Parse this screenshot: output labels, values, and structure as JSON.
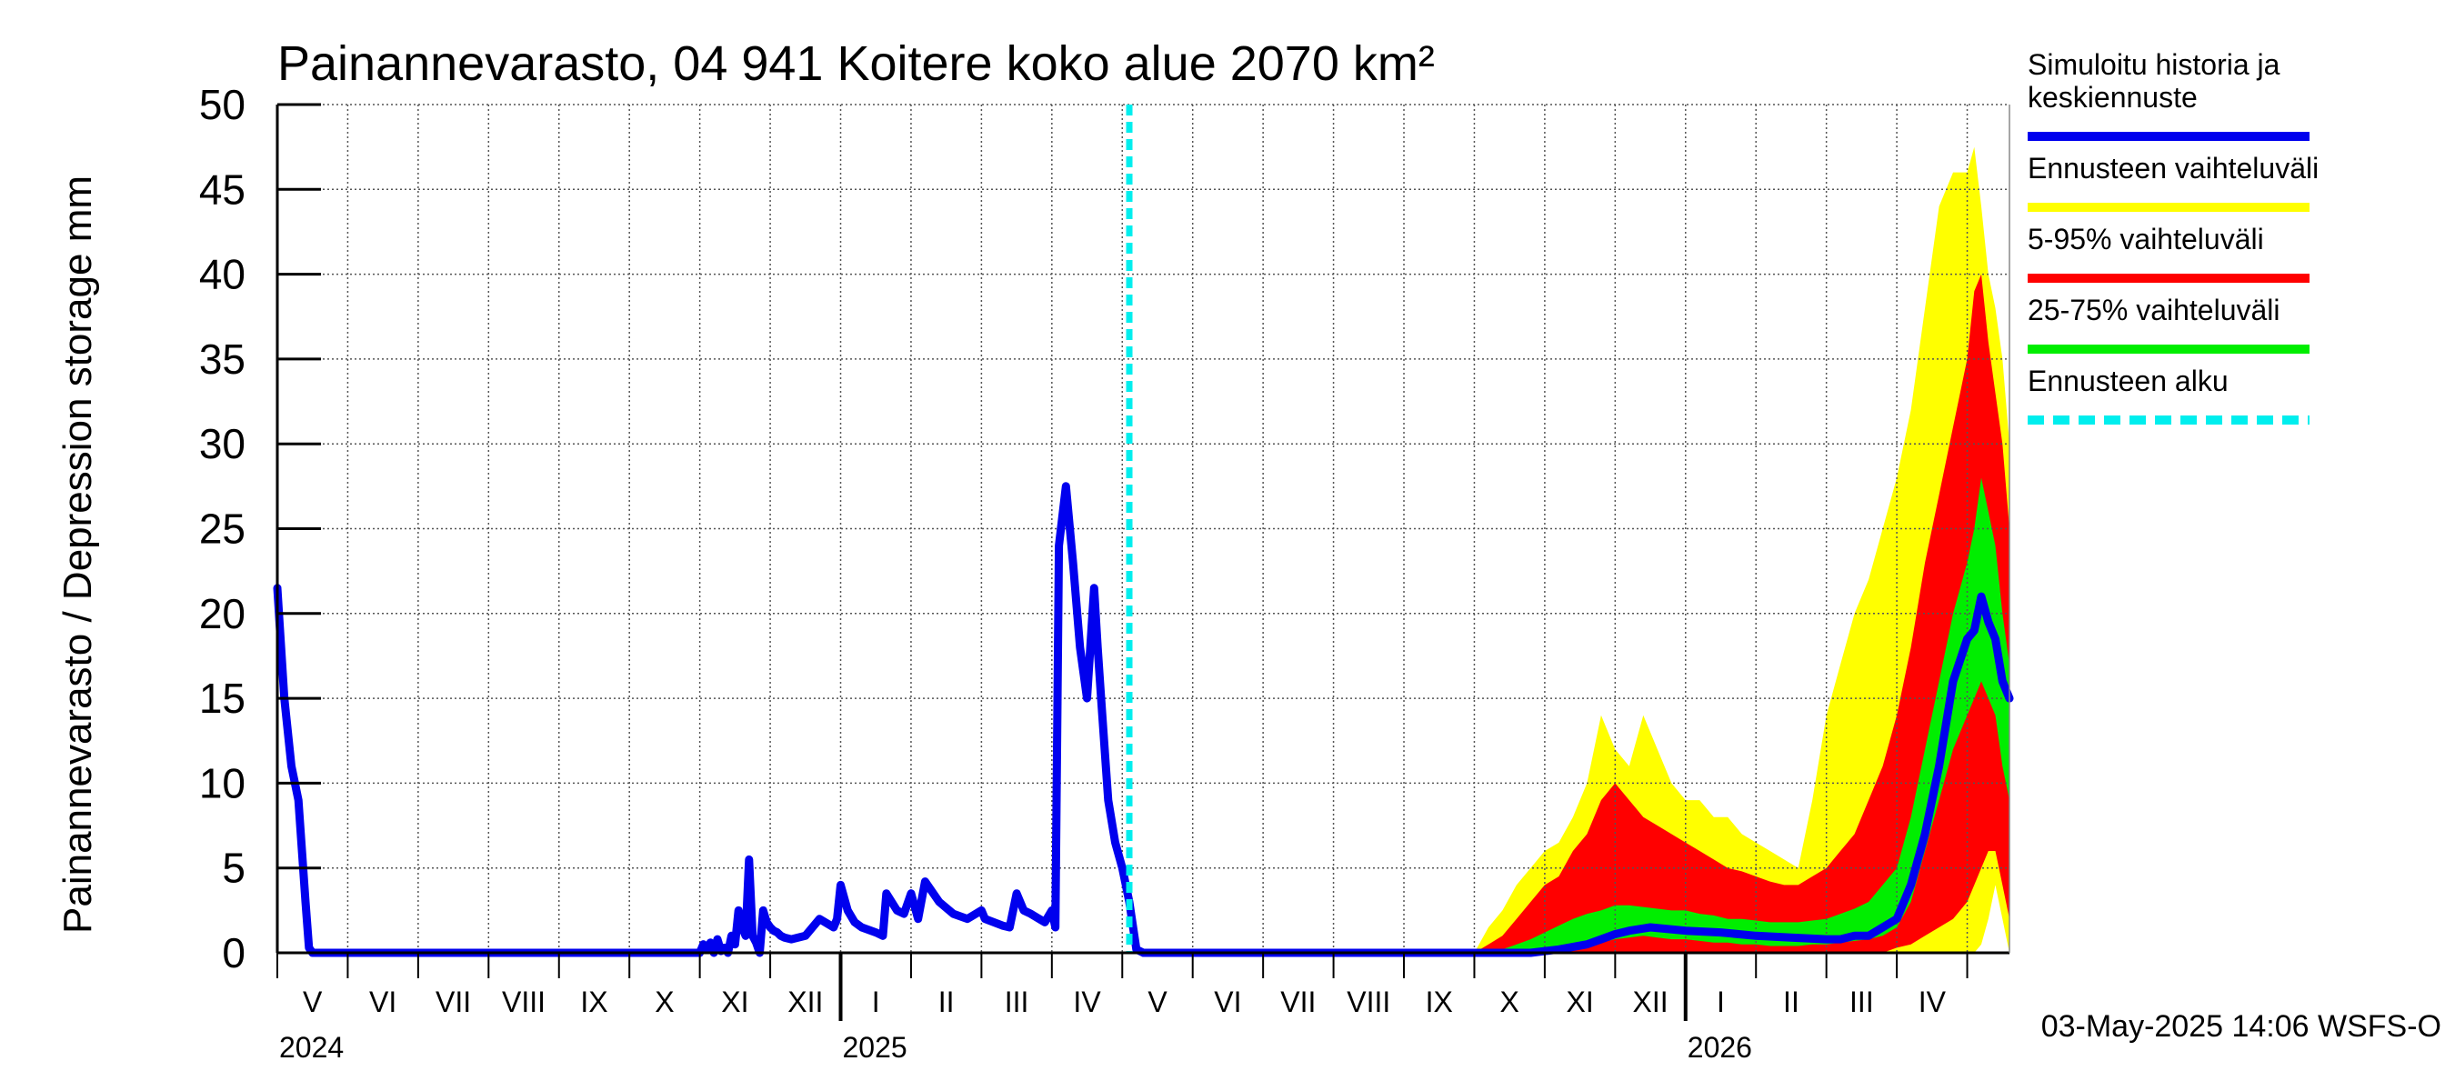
{
  "chart_data": {
    "type": "area",
    "title": "Painannevarasto, 04 941 Koitere koko alue 2070 km²",
    "ylabel": "Painannevarasto / Depression storage    mm",
    "ylim": [
      0,
      50
    ],
    "yticks": [
      0,
      5,
      10,
      15,
      20,
      25,
      30,
      35,
      40,
      45,
      50
    ],
    "x_range_months": [
      0,
      24.6
    ],
    "months": [
      "V",
      "VI",
      "VII",
      "VIII",
      "IX",
      "X",
      "XI",
      "XII",
      "I",
      "II",
      "III",
      "IV",
      "V",
      "VI",
      "VII",
      "VIII",
      "IX",
      "X",
      "XI",
      "XII",
      "I",
      "II",
      "III",
      "IV"
    ],
    "years": [
      {
        "label": "2024",
        "month": 0
      },
      {
        "label": "2025",
        "month": 8
      },
      {
        "label": "2026",
        "month": 20
      }
    ],
    "forecast_start_month": 12.1,
    "footer": "03-May-2025 14:06 WSFS-O",
    "legend": [
      {
        "label": "Simuloitu historia ja keskiennuste",
        "color": "#0000ee",
        "style": "solid"
      },
      {
        "label": "Ennusteen vaihteluväli",
        "color": "#ffff00",
        "style": "solid"
      },
      {
        "label": "5-95% vaihteluväli",
        "color": "#ff0000",
        "style": "solid"
      },
      {
        "label": "25-75% vaihteluväli",
        "color": "#00ee00",
        "style": "solid"
      },
      {
        "label": "Ennusteen alku",
        "color": "#00eeee",
        "style": "dashed"
      }
    ],
    "history": {
      "x": [
        0,
        0.1,
        0.2,
        0.3,
        0.4,
        0.45,
        0.5,
        6.0,
        6.05,
        6.1,
        6.15,
        6.2,
        6.25,
        6.3,
        6.35,
        6.4,
        6.45,
        6.5,
        6.55,
        6.6,
        6.65,
        6.7,
        6.75,
        6.8,
        6.85,
        6.9,
        6.95,
        7.0,
        7.05,
        7.1,
        7.15,
        7.2,
        7.3,
        7.5,
        7.7,
        7.9,
        7.95,
        8.0,
        8.1,
        8.2,
        8.3,
        8.5,
        8.6,
        8.65,
        8.8,
        8.9,
        9.0,
        9.1,
        9.2,
        9.4,
        9.6,
        9.8,
        10.0,
        10.05,
        10.3,
        10.4,
        10.5,
        10.6,
        10.7,
        10.9,
        11.0,
        11.05,
        11.1,
        11.2,
        11.3,
        11.4,
        11.5,
        11.6,
        11.65,
        11.7,
        11.8,
        11.9,
        12.0,
        12.1,
        12.2,
        12.3
      ],
      "y": [
        21.5,
        15,
        11,
        9,
        3,
        0.3,
        0,
        0,
        0.5,
        0.2,
        0.6,
        0,
        0.8,
        0.1,
        0.3,
        0,
        1,
        0.5,
        2.5,
        1.5,
        1,
        5.5,
        1,
        0.6,
        0,
        2.5,
        1.8,
        1.5,
        1.3,
        1.2,
        1,
        0.9,
        0.8,
        1,
        2,
        1.5,
        2,
        4,
        2.5,
        1.8,
        1.5,
        1.2,
        1,
        3.5,
        2.5,
        2.3,
        3.5,
        2,
        4.2,
        3,
        2.3,
        2,
        2.5,
        2,
        1.6,
        1.5,
        3.5,
        2.5,
        2.3,
        1.8,
        2.5,
        1.5,
        24,
        27.5,
        23,
        18,
        15,
        21.5,
        18,
        15,
        9,
        6.5,
        5,
        3,
        0.2,
        0
      ]
    },
    "forecast_median": {
      "x": [
        12.3,
        17.8,
        18.2,
        18.6,
        18.8,
        19.0,
        19.2,
        19.5,
        20.0,
        20.5,
        21.0,
        21.5,
        22.0,
        22.2,
        22.4,
        22.6,
        22.8,
        23.0,
        23.2,
        23.4,
        23.6,
        23.8,
        24.0,
        24.1,
        24.2,
        24.3,
        24.4,
        24.5,
        24.6
      ],
      "y": [
        0,
        0,
        0.2,
        0.5,
        0.8,
        1.1,
        1.3,
        1.5,
        1.3,
        1.2,
        1.0,
        0.9,
        0.8,
        0.8,
        1.0,
        1.0,
        1.5,
        2.0,
        4.0,
        7.0,
        11.0,
        16.0,
        18.5,
        19.0,
        21.0,
        19.5,
        18.5,
        16,
        15
      ]
    },
    "forecast_bands": {
      "x": [
        12.3,
        17.0,
        17.2,
        17.4,
        17.6,
        17.8,
        18.0,
        18.2,
        18.4,
        18.6,
        18.8,
        19.0,
        19.2,
        19.4,
        19.6,
        19.8,
        20.0,
        20.2,
        20.4,
        20.6,
        20.8,
        21.0,
        21.2,
        21.4,
        21.6,
        21.8,
        22.0,
        22.2,
        22.4,
        22.6,
        22.8,
        23.0,
        23.2,
        23.4,
        23.6,
        23.8,
        24.0,
        24.1,
        24.2,
        24.3,
        24.4,
        24.5,
        24.6
      ],
      "ens_min": [
        0,
        0,
        0,
        0,
        0,
        0,
        0,
        0,
        0,
        0,
        0,
        0,
        0,
        0,
        0,
        0,
        0,
        0,
        0,
        0,
        0,
        0,
        0,
        0,
        0,
        0,
        0,
        0,
        0,
        0,
        0,
        0,
        0,
        0,
        0,
        0,
        0,
        0,
        0.5,
        2,
        4,
        2,
        0
      ],
      "ens_max": [
        0,
        0,
        1.5,
        2.5,
        4,
        5,
        6,
        6.5,
        8,
        10,
        14,
        12,
        11,
        14,
        12,
        10,
        9,
        9,
        8,
        8,
        7,
        6.5,
        6,
        5.5,
        5,
        9,
        14,
        17,
        20,
        22,
        25,
        28,
        32,
        38,
        44,
        46,
        46,
        47.5,
        44,
        40,
        38,
        35,
        30
      ],
      "p05": [
        0,
        0,
        0,
        0,
        0,
        0,
        0,
        0,
        0,
        0,
        0,
        0,
        0,
        0,
        0,
        0,
        0,
        0,
        0,
        0,
        0,
        0,
        0,
        0,
        0,
        0,
        0,
        0,
        0,
        0,
        0,
        0.3,
        0.5,
        1,
        1.5,
        2,
        3,
        4,
        5,
        6,
        6,
        4,
        2
      ],
      "p95": [
        0,
        0,
        0.5,
        1,
        2,
        3,
        4,
        4.5,
        6,
        7,
        9,
        10,
        9,
        8,
        7.5,
        7,
        6.5,
        6,
        5.5,
        5,
        4.8,
        4.5,
        4.2,
        4,
        4,
        4.5,
        5,
        6,
        7,
        9,
        11,
        14,
        18,
        23,
        27,
        31,
        35,
        39,
        40,
        36,
        33,
        30,
        25
      ],
      "p25": [
        0,
        0,
        0,
        0,
        0,
        0,
        0,
        0.1,
        0.2,
        0.4,
        0.6,
        0.8,
        0.9,
        1.0,
        0.9,
        0.8,
        0.8,
        0.7,
        0.6,
        0.6,
        0.5,
        0.5,
        0.4,
        0.4,
        0.4,
        0.5,
        0.5,
        0.6,
        0.7,
        0.8,
        1.0,
        1.5,
        3,
        6,
        9,
        12,
        14,
        15,
        16,
        15,
        14,
        11,
        9
      ],
      "p75": [
        0,
        0,
        0,
        0.2,
        0.5,
        0.8,
        1.2,
        1.6,
        2.0,
        2.3,
        2.5,
        2.8,
        2.8,
        2.7,
        2.6,
        2.5,
        2.5,
        2.3,
        2.2,
        2.0,
        2.0,
        1.9,
        1.8,
        1.8,
        1.8,
        1.9,
        2.0,
        2.3,
        2.6,
        3.0,
        4.0,
        5.0,
        8,
        12,
        16,
        20,
        23,
        25,
        28,
        26,
        24,
        20,
        17
      ]
    }
  }
}
